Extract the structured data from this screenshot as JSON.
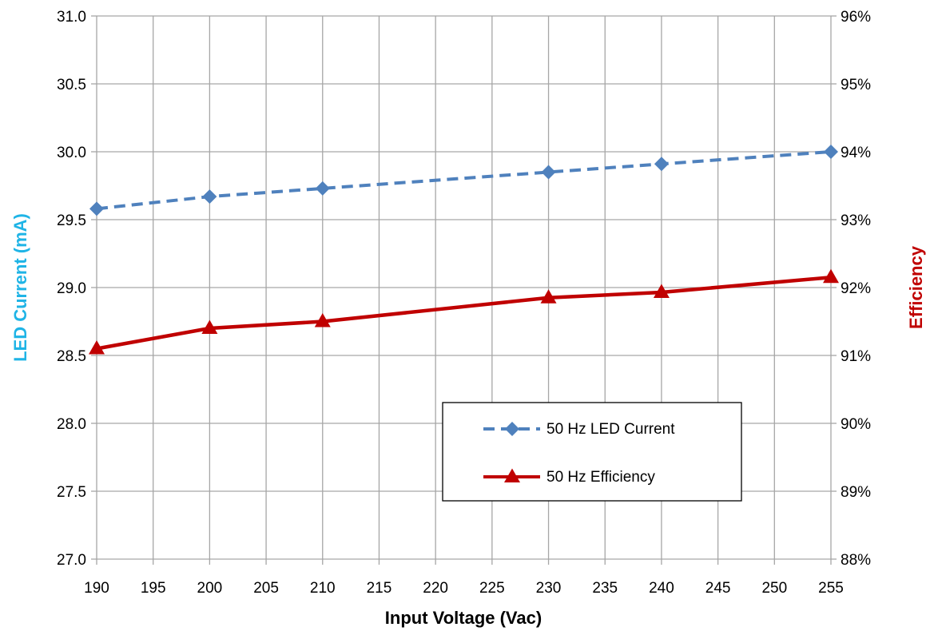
{
  "chart_data": {
    "type": "line",
    "title": "",
    "xlabel": "Input Voltage (Vac)",
    "ylabel": "LED Current (mA)",
    "y2label": "Efficiency",
    "xlim": [
      190,
      255
    ],
    "ylim": [
      27.0,
      31.0
    ],
    "y2lim": [
      0.88,
      0.96
    ],
    "x_ticks": [
      "190",
      "195",
      "200",
      "205",
      "210",
      "215",
      "220",
      "225",
      "230",
      "235",
      "240",
      "245",
      "250",
      "255"
    ],
    "y_ticks": [
      "27.0",
      "27.5",
      "28.0",
      "28.5",
      "29.0",
      "29.5",
      "30.0",
      "30.5",
      "31.0"
    ],
    "y2_ticks": [
      "88%",
      "89%",
      "90%",
      "91%",
      "92%",
      "93%",
      "94%",
      "95%",
      "96%"
    ],
    "grid": true,
    "legend_position": "bottom-right",
    "colors": {
      "ylabel": "#1FB4E6",
      "y2label": "#C00000",
      "grid": "#A6A6A6"
    },
    "series": [
      {
        "name": "50 Hz LED Current",
        "axis": "left",
        "color": "#4F81BD",
        "line_style": "dashed",
        "marker": "diamond",
        "x": [
          190,
          200,
          210,
          230,
          240,
          255
        ],
        "y": [
          29.58,
          29.67,
          29.73,
          29.85,
          29.91,
          30.0
        ]
      },
      {
        "name": "50 Hz Efficiency",
        "axis": "right",
        "color": "#C00000",
        "line_style": "solid",
        "marker": "triangle",
        "x": [
          190,
          200,
          210,
          230,
          240,
          255
        ],
        "y": [
          0.911,
          0.914,
          0.915,
          0.9185,
          0.9193,
          0.9215
        ]
      }
    ]
  }
}
